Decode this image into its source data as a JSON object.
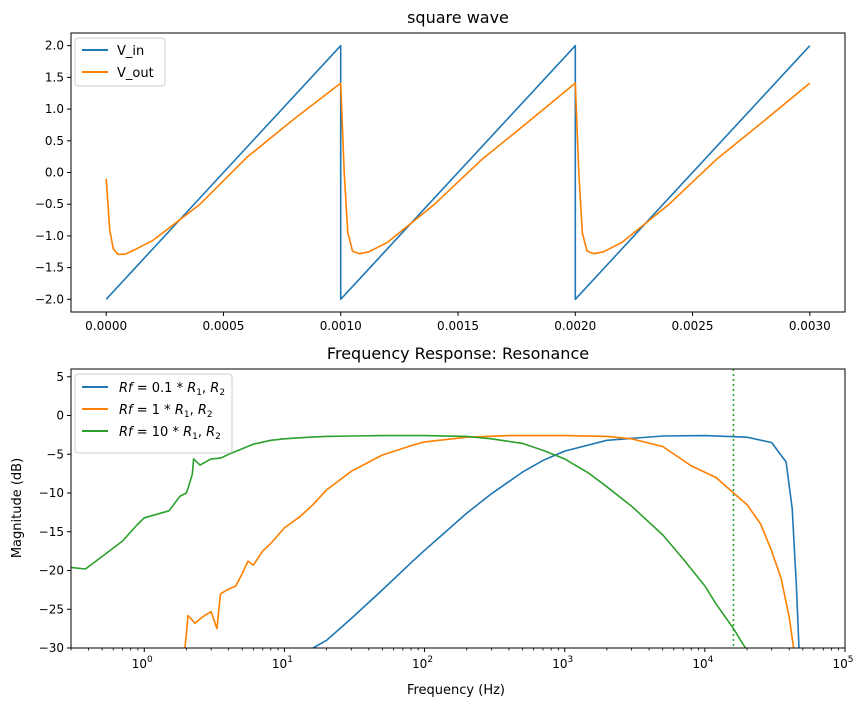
{
  "chart_data": [
    {
      "type": "line",
      "title": "square wave",
      "xlabel": "",
      "ylabel": "",
      "xlim": [
        -0.00015,
        0.00315
      ],
      "ylim": [
        -2.2,
        2.2
      ],
      "xticks": [
        {
          "value": 0.0,
          "label": "0.0000"
        },
        {
          "value": 0.0005,
          "label": "0.0005"
        },
        {
          "value": 0.001,
          "label": "0.0010"
        },
        {
          "value": 0.0015,
          "label": "0.0015"
        },
        {
          "value": 0.002,
          "label": "0.0020"
        },
        {
          "value": 0.0025,
          "label": "0.0025"
        },
        {
          "value": 0.003,
          "label": "0.0030"
        }
      ],
      "yticks": [
        {
          "value": 2.0,
          "label": "2.0"
        },
        {
          "value": 1.5,
          "label": "1.5"
        },
        {
          "value": 1.0,
          "label": "1.0"
        },
        {
          "value": 0.5,
          "label": "0.5"
        },
        {
          "value": 0.0,
          "label": "0.0"
        },
        {
          "value": -0.5,
          "label": "−0.5"
        },
        {
          "value": -1.0,
          "label": "−1.0"
        },
        {
          "value": -1.5,
          "label": "−1.5"
        },
        {
          "value": -2.0,
          "label": "−2.0"
        }
      ],
      "legend_position": "top-left",
      "series": [
        {
          "name": "V_in",
          "color": "#1f77b4",
          "x": [
            0.0,
            0.001,
            0.001,
            0.002,
            0.002,
            0.003
          ],
          "y": [
            -2.0,
            2.0,
            -2.0,
            2.0,
            -2.0,
            2.0
          ]
        },
        {
          "name": "V_out",
          "color": "#ff7f00",
          "x": [
            0.0,
            1.5e-05,
            3e-05,
            5e-05,
            8e-05,
            0.00012,
            0.0002,
            0.0004,
            0.0006,
            0.0008,
            0.001,
            0.001,
            0.001015,
            0.00103,
            0.00105,
            0.00108,
            0.00112,
            0.0012,
            0.0014,
            0.0016,
            0.0018,
            0.002,
            0.002,
            0.002015,
            0.00203,
            0.00205,
            0.00208,
            0.00212,
            0.0022,
            0.0024,
            0.0026,
            0.0028,
            0.003
          ],
          "y": [
            -0.1,
            -0.9,
            -1.2,
            -1.29,
            -1.29,
            -1.22,
            -1.07,
            -0.5,
            0.24,
            0.84,
            1.41,
            1.41,
            0.0,
            -0.95,
            -1.24,
            -1.28,
            -1.25,
            -1.1,
            -0.5,
            0.2,
            0.8,
            1.41,
            1.41,
            0.0,
            -0.95,
            -1.24,
            -1.28,
            -1.25,
            -1.1,
            -0.5,
            0.2,
            0.8,
            1.41
          ]
        }
      ]
    },
    {
      "type": "line",
      "title": "Frequency Response: Resonance",
      "xlabel": "Frequency (Hz)",
      "ylabel": "Magnitude (dB)",
      "xscale": "log",
      "xlim": [
        0.3,
        100000
      ],
      "ylim": [
        -30,
        6
      ],
      "xticks": [
        {
          "value": 1,
          "base": "10",
          "exp": "0"
        },
        {
          "value": 10,
          "base": "10",
          "exp": "1"
        },
        {
          "value": 100,
          "base": "10",
          "exp": "2"
        },
        {
          "value": 1000,
          "base": "10",
          "exp": "3"
        },
        {
          "value": 10000,
          "base": "10",
          "exp": "4"
        },
        {
          "value": 100000,
          "base": "10",
          "exp": "5"
        }
      ],
      "yticks": [
        {
          "value": 5,
          "label": "5"
        },
        {
          "value": 0,
          "label": "0"
        },
        {
          "value": -5,
          "label": "−5"
        },
        {
          "value": -10,
          "label": "−10"
        },
        {
          "value": -15,
          "label": "−15"
        },
        {
          "value": -20,
          "label": "−20"
        },
        {
          "value": -25,
          "label": "−25"
        },
        {
          "value": -30,
          "label": "−30"
        }
      ],
      "vline": {
        "x": 16000,
        "color": "#2ca02c",
        "style": "dotted"
      },
      "legend_position": "top-left",
      "series": [
        {
          "name": "Rf = 0.1 * R1, R2",
          "legend_parts": {
            "lhs": "Rf",
            "eq": " = 0.1 * ",
            "r1": "R",
            "sub1": "1",
            "sep": ", ",
            "r2": "R",
            "sub2": "2"
          },
          "color": "#1f77b4",
          "x": [
            16,
            20,
            30,
            50,
            80,
            100,
            200,
            300,
            500,
            700,
            1000,
            2000,
            5000,
            10000,
            20000,
            30000,
            38000,
            42000,
            45000,
            47000
          ],
          "y": [
            -30,
            -29,
            -26.2,
            -22.5,
            -19,
            -17.4,
            -12.6,
            -10.1,
            -7.3,
            -5.8,
            -4.6,
            -3.2,
            -2.65,
            -2.6,
            -2.8,
            -3.5,
            -6,
            -12,
            -22,
            -30
          ]
        },
        {
          "name": "Rf = 1 * R1, R2",
          "legend_parts": {
            "lhs": "Rf",
            "eq": " = 1 * ",
            "r1": "R",
            "sub1": "1",
            "sep": ", ",
            "r2": "R",
            "sub2": "2"
          },
          "color": "#ff7f00",
          "x": [
            1.95,
            2.0,
            2.05,
            2.3,
            2.6,
            3.0,
            3.3,
            3.5,
            4.0,
            4.5,
            5.0,
            5.5,
            6.0,
            7.0,
            8.0,
            10,
            13,
            16,
            20,
            30,
            50,
            80,
            100,
            200,
            400,
            700,
            1000,
            2000,
            3000,
            5000,
            8000,
            12000,
            16000,
            20000,
            25000,
            30000,
            35000,
            40000,
            43000
          ],
          "y": [
            -30,
            -28,
            -25.8,
            -26.8,
            -26,
            -25.3,
            -27.5,
            -23,
            -22.4,
            -22,
            -20.4,
            -18.8,
            -19.3,
            -17.5,
            -16.5,
            -14.5,
            -13,
            -11.5,
            -9.6,
            -7.2,
            -5.1,
            -3.9,
            -3.4,
            -2.8,
            -2.6,
            -2.6,
            -2.6,
            -2.7,
            -3.0,
            -4.0,
            -6.5,
            -8.0,
            -10.0,
            -11.5,
            -14,
            -17.5,
            -21,
            -26,
            -30
          ]
        },
        {
          "name": "Rf = 10 * R1, R2",
          "legend_parts": {
            "lhs": "Rf",
            "eq": " = 10 * ",
            "r1": "R",
            "sub1": "1",
            "sep": ", ",
            "r2": "R",
            "sub2": "2"
          },
          "color": "#2ca02c",
          "x": [
            0.3,
            0.38,
            0.5,
            0.7,
            0.9,
            1.0,
            1.2,
            1.5,
            1.8,
            2.0,
            2.2,
            2.25,
            2.5,
            3.0,
            3.5,
            4.0,
            5.0,
            6.0,
            8.0,
            10,
            15,
            20,
            30,
            50,
            100,
            200,
            300,
            500,
            700,
            1000,
            1500,
            2000,
            3000,
            5000,
            7000,
            10000,
            12000,
            14000,
            16000,
            18000,
            19500
          ],
          "y": [
            -19.6,
            -19.8,
            -18.2,
            -16.2,
            -14,
            -13.2,
            -12.8,
            -12.3,
            -10.4,
            -10.0,
            -7.6,
            -5.6,
            -6.4,
            -5.6,
            -5.5,
            -5.0,
            -4.3,
            -3.7,
            -3.2,
            -3.0,
            -2.8,
            -2.7,
            -2.65,
            -2.6,
            -2.6,
            -2.7,
            -3.0,
            -3.6,
            -4.5,
            -5.6,
            -7.5,
            -9.2,
            -11.7,
            -15.4,
            -18.5,
            -22.0,
            -24.3,
            -26.0,
            -27.5,
            -29.0,
            -30
          ]
        }
      ]
    }
  ]
}
